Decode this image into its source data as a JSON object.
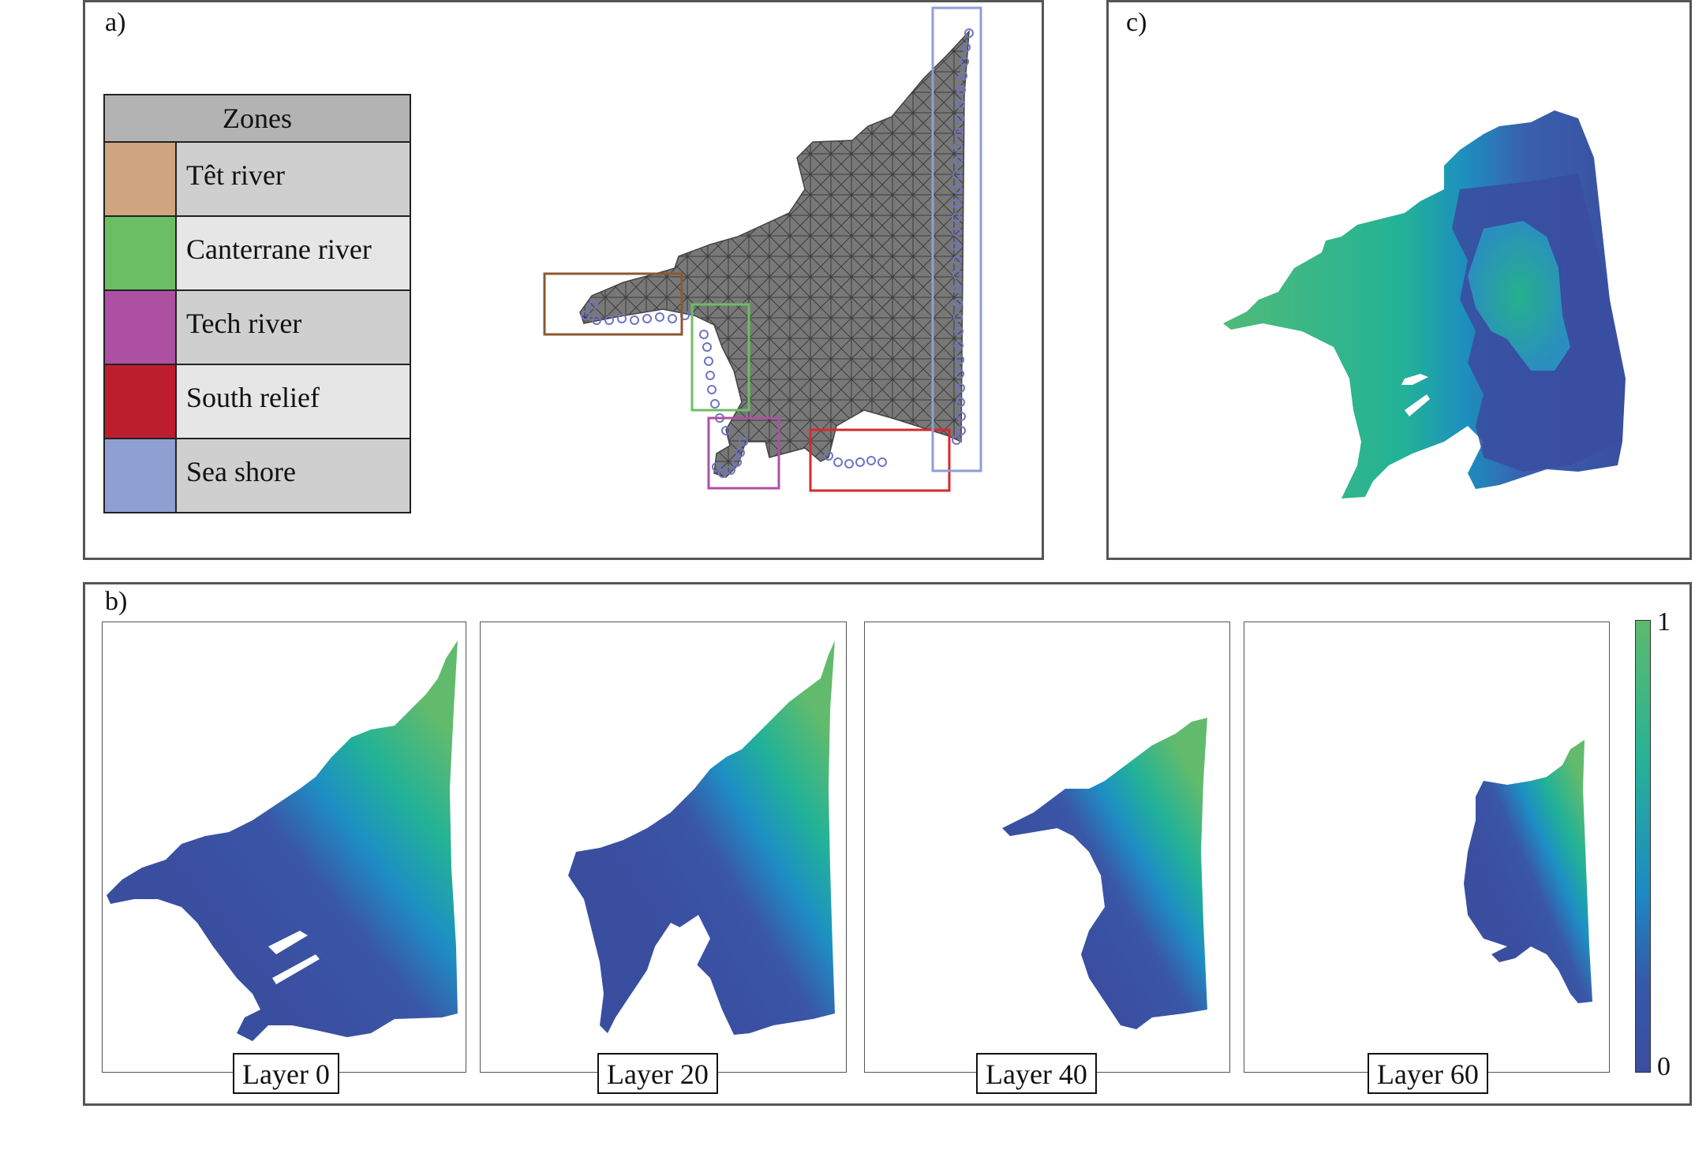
{
  "panels": {
    "a": {
      "label": "a)",
      "legend": {
        "title": "Zones",
        "zones": [
          {
            "name": "Têt river",
            "color": "#cfa57f"
          },
          {
            "name": "Canterrane river",
            "color": "#6cbe64"
          },
          {
            "name": "Tech river",
            "color": "#ae50a2"
          },
          {
            "name": "South relief",
            "color": "#bd1e2e"
          },
          {
            "name": "Sea shore",
            "color": "#8f9fd2"
          }
        ]
      },
      "mesh_fill": "#787878",
      "box_colors": {
        "tet": "#8a5a34",
        "canterrane": "#6cbe64",
        "tech": "#ae50a2",
        "south": "#d32a2e",
        "sea": "#8f9fd2"
      }
    },
    "b": {
      "label": "b)",
      "layers": [
        "Layer 0",
        "Layer 20",
        "Layer 40",
        "Layer 60"
      ],
      "colorbar": {
        "max_label": "1",
        "min_label": "0",
        "colors": [
          "#5dba6c",
          "#2ab295",
          "#1c8ac4",
          "#3a4e9f"
        ]
      }
    },
    "c": {
      "label": "c)"
    }
  }
}
